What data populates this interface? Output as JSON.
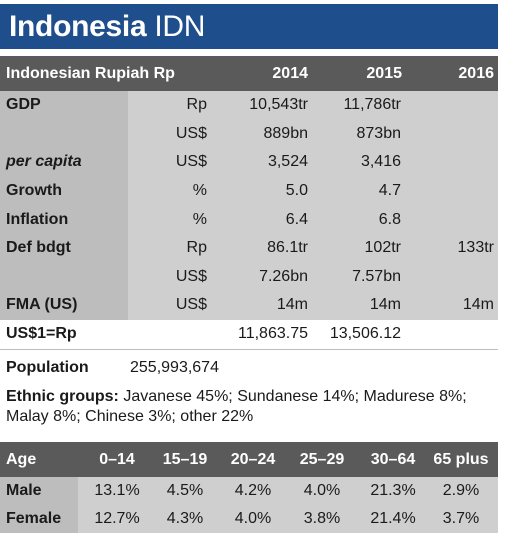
{
  "title": {
    "name": "Indonesia",
    "code": "IDN"
  },
  "economy": {
    "header": {
      "currency": "Indonesian Rupiah Rp",
      "years": [
        "2014",
        "2015",
        "2016"
      ]
    },
    "rows": [
      {
        "label": "GDP",
        "unit": "Rp",
        "values": [
          "10,543tr",
          "11,786tr",
          ""
        ]
      },
      {
        "label": "",
        "unit": "US$",
        "values": [
          "889bn",
          "873bn",
          ""
        ]
      },
      {
        "label": "per capita",
        "unit": "US$",
        "values": [
          "3,524",
          "3,416",
          ""
        ]
      },
      {
        "label": "Growth",
        "unit": "%",
        "values": [
          "5.0",
          "4.7",
          ""
        ]
      },
      {
        "label": "Inflation",
        "unit": "%",
        "values": [
          "6.4",
          "6.8",
          ""
        ]
      },
      {
        "label": "Def bdgt",
        "unit": "Rp",
        "values": [
          "86.1tr",
          "102tr",
          "133tr"
        ]
      },
      {
        "label": "",
        "unit": "US$",
        "values": [
          "7.26bn",
          "7.57bn",
          ""
        ]
      },
      {
        "label": "FMA (US)",
        "unit": "US$",
        "values": [
          "14m",
          "14m",
          "14m"
        ]
      }
    ],
    "fx": {
      "label": "US$1=Rp",
      "values": [
        "11,863.75",
        "13,506.12",
        ""
      ]
    }
  },
  "population": {
    "label": "Population",
    "value": "255,993,674"
  },
  "ethnic": {
    "label": "Ethnic groups:",
    "text": "Javanese 45%; Sundanese 14%; Madurese 8%; Malay 8%; Chinese 3%; other 22%"
  },
  "age": {
    "header": {
      "label": "Age",
      "groups": [
        "0–14",
        "15–19",
        "20–24",
        "25–29",
        "30–64",
        "65 plus"
      ]
    },
    "rows": [
      {
        "label": "Male",
        "values": [
          "13.1%",
          "4.5%",
          "4.2%",
          "4.0%",
          "21.3%",
          "2.9%"
        ]
      },
      {
        "label": "Female",
        "values": [
          "12.7%",
          "4.3%",
          "4.0%",
          "3.8%",
          "21.4%",
          "3.7%"
        ]
      }
    ]
  },
  "colors": {
    "title_bg": "#1f4e8c",
    "header_bg": "#5a5a5a",
    "body_bg": "#cfcfcf",
    "label_bg": "#bdbdbd"
  }
}
